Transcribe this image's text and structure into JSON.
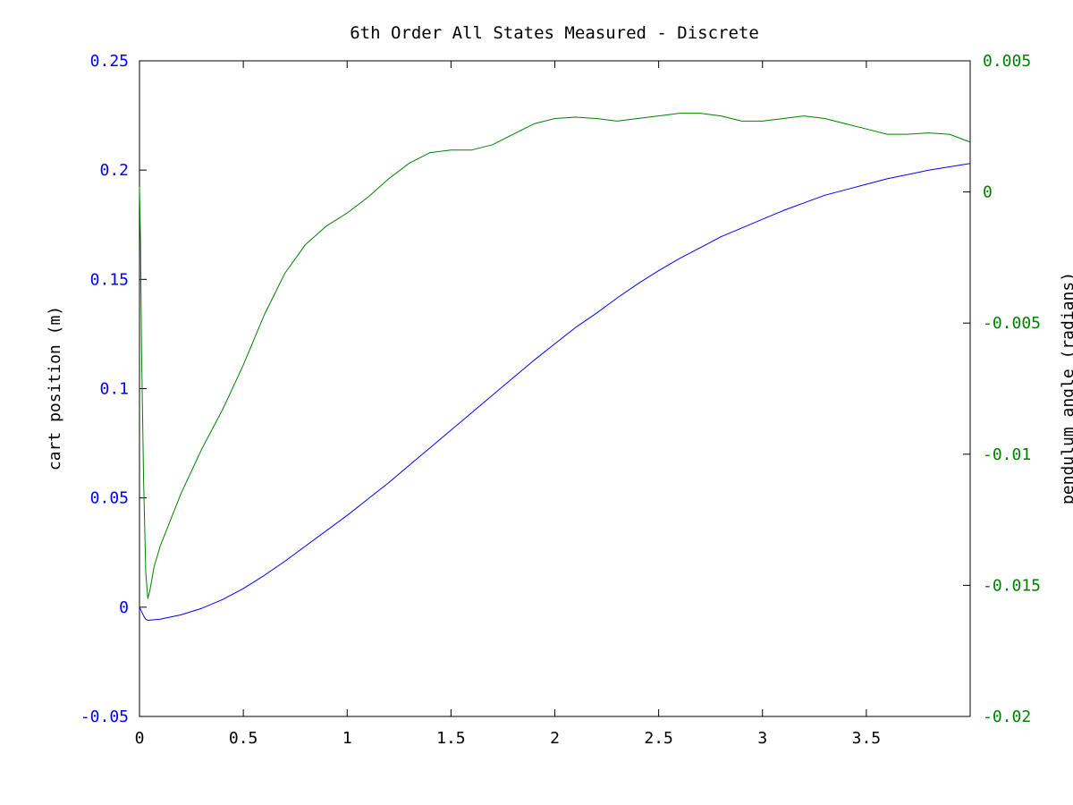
{
  "chart_data": {
    "type": "line",
    "title": "6th Order All States Measured - Discrete",
    "xlabel": "",
    "ylabel_left": "cart position (m)",
    "ylabel_right": "pendulum angle (radians)",
    "xlim": [
      0,
      4
    ],
    "ylim_left": [
      -0.05,
      0.25
    ],
    "ylim_right": [
      -0.02,
      0.005
    ],
    "x_ticks": [
      "0",
      "0.5",
      "1",
      "1.5",
      "2",
      "2.5",
      "3",
      "3.5"
    ],
    "y_ticks_left": [
      "-0.05",
      "0",
      "0.05",
      "0.1",
      "0.15",
      "0.2",
      "0.25"
    ],
    "y_ticks_right": [
      "-0.02",
      "-0.015",
      "-0.01",
      "-0.005",
      "0",
      "0.005"
    ],
    "grid": false,
    "colors": {
      "left_axis": "#0000ff",
      "right_axis": "#008000",
      "axes": "#000000"
    },
    "series": [
      {
        "axis": "left",
        "color": "#0000ff",
        "points": [
          [
            0,
            0
          ],
          [
            0.01,
            -0.002
          ],
          [
            0.02,
            -0.004
          ],
          [
            0.03,
            -0.0055
          ],
          [
            0.04,
            -0.006
          ],
          [
            0.1,
            -0.0055
          ],
          [
            0.2,
            -0.0035
          ],
          [
            0.3,
            -0.0005
          ],
          [
            0.4,
            0.0035
          ],
          [
            0.5,
            0.0085
          ],
          [
            0.6,
            0.0145
          ],
          [
            0.7,
            0.021
          ],
          [
            0.8,
            0.028
          ],
          [
            0.9,
            0.035
          ],
          [
            1.0,
            0.042
          ],
          [
            1.1,
            0.0495
          ],
          [
            1.2,
            0.057
          ],
          [
            1.3,
            0.065
          ],
          [
            1.4,
            0.073
          ],
          [
            1.5,
            0.081
          ],
          [
            1.6,
            0.089
          ],
          [
            1.7,
            0.097
          ],
          [
            1.8,
            0.105
          ],
          [
            1.9,
            0.113
          ],
          [
            2.0,
            0.1205
          ],
          [
            2.1,
            0.128
          ],
          [
            2.2,
            0.1345
          ],
          [
            2.3,
            0.1415
          ],
          [
            2.4,
            0.148
          ],
          [
            2.5,
            0.154
          ],
          [
            2.6,
            0.1595
          ],
          [
            2.7,
            0.1645
          ],
          [
            2.8,
            0.1695
          ],
          [
            2.9,
            0.1735
          ],
          [
            3.0,
            0.1775
          ],
          [
            3.1,
            0.1815
          ],
          [
            3.2,
            0.185
          ],
          [
            3.3,
            0.1885
          ],
          [
            3.4,
            0.191
          ],
          [
            3.5,
            0.1935
          ],
          [
            3.6,
            0.196
          ],
          [
            3.7,
            0.198
          ],
          [
            3.8,
            0.2
          ],
          [
            3.9,
            0.2015
          ],
          [
            4.0,
            0.203
          ]
        ]
      },
      {
        "axis": "right",
        "color": "#008000",
        "points": [
          [
            0,
            0.0002
          ],
          [
            0.005,
            -0.002
          ],
          [
            0.01,
            -0.006
          ],
          [
            0.02,
            -0.011
          ],
          [
            0.03,
            -0.0145
          ],
          [
            0.04,
            -0.0155
          ],
          [
            0.05,
            -0.0152
          ],
          [
            0.07,
            -0.0143
          ],
          [
            0.1,
            -0.0135
          ],
          [
            0.2,
            -0.0115
          ],
          [
            0.3,
            -0.0098
          ],
          [
            0.4,
            -0.0083
          ],
          [
            0.5,
            -0.0066
          ],
          [
            0.6,
            -0.0047
          ],
          [
            0.7,
            -0.0031
          ],
          [
            0.8,
            -0.002
          ],
          [
            0.9,
            -0.0013
          ],
          [
            1.0,
            -0.0008
          ],
          [
            1.1,
            -0.0002
          ],
          [
            1.2,
            0.0005
          ],
          [
            1.3,
            0.0011
          ],
          [
            1.4,
            0.0015
          ],
          [
            1.5,
            0.0016
          ],
          [
            1.6,
            0.0016
          ],
          [
            1.7,
            0.0018
          ],
          [
            1.8,
            0.0022
          ],
          [
            1.9,
            0.0026
          ],
          [
            2.0,
            0.0028
          ],
          [
            2.1,
            0.00285
          ],
          [
            2.2,
            0.0028
          ],
          [
            2.3,
            0.0027
          ],
          [
            2.4,
            0.0028
          ],
          [
            2.5,
            0.0029
          ],
          [
            2.6,
            0.003
          ],
          [
            2.7,
            0.003
          ],
          [
            2.8,
            0.0029
          ],
          [
            2.9,
            0.0027
          ],
          [
            3.0,
            0.0027
          ],
          [
            3.1,
            0.0028
          ],
          [
            3.2,
            0.0029
          ],
          [
            3.3,
            0.0028
          ],
          [
            3.4,
            0.0026
          ],
          [
            3.5,
            0.0024
          ],
          [
            3.6,
            0.0022
          ],
          [
            3.7,
            0.0022
          ],
          [
            3.8,
            0.00225
          ],
          [
            3.9,
            0.0022
          ],
          [
            4.0,
            0.0019
          ]
        ]
      }
    ]
  }
}
